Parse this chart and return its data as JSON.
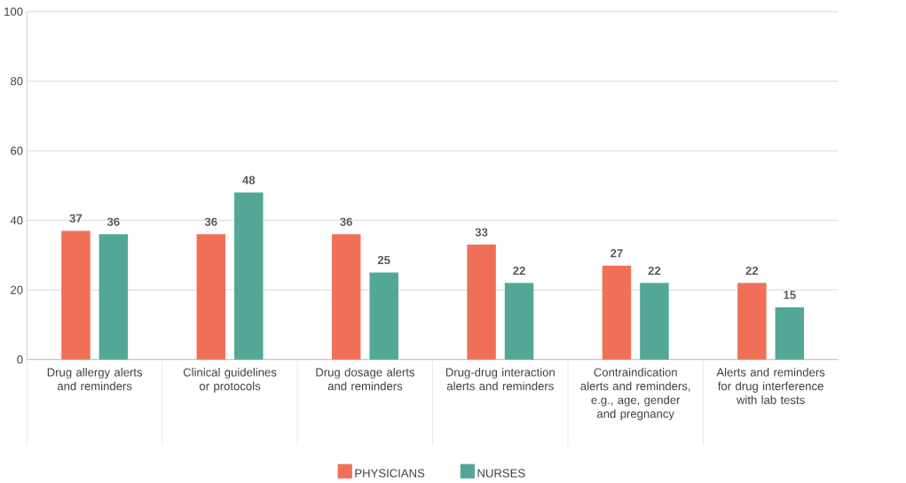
{
  "chart_data": {
    "type": "bar",
    "categories": [
      "Drug allergy alerts and reminders",
      "Clinical guidelines or protocols",
      "Drug dosage alerts and reminders",
      "Drug-drug interaction alerts and reminders",
      "Contraindication alerts and reminders, e.g., age, gender and pregnancy",
      "Alerts and reminders for drug interference with lab tests"
    ],
    "series": [
      {
        "name": "PHYSICIANS",
        "color": "#f07057",
        "values": [
          37,
          36,
          36,
          33,
          27,
          22
        ]
      },
      {
        "name": "NURSES",
        "color": "#52a797",
        "values": [
          36,
          48,
          25,
          22,
          22,
          15
        ]
      }
    ],
    "ylim": [
      0,
      100
    ],
    "yticks": [
      0,
      20,
      40,
      60,
      80,
      100
    ],
    "grid": "y",
    "legend": "bottom",
    "data_labels": true
  }
}
